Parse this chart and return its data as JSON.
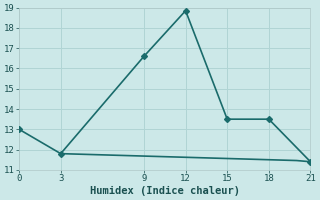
{
  "x_main": [
    0,
    3,
    9,
    12,
    15,
    18,
    21
  ],
  "y_main": [
    13.0,
    11.8,
    16.6,
    18.85,
    13.5,
    13.5,
    11.4
  ],
  "x_flat": [
    3,
    4,
    5,
    6,
    7,
    8,
    9,
    10,
    11,
    12,
    13,
    14,
    15,
    16,
    17,
    18,
    19,
    20,
    21
  ],
  "y_flat": [
    11.8,
    11.78,
    11.76,
    11.74,
    11.72,
    11.7,
    11.68,
    11.66,
    11.64,
    11.62,
    11.6,
    11.58,
    11.56,
    11.54,
    11.52,
    11.5,
    11.48,
    11.46,
    11.4
  ],
  "line_color": "#1a6b6b",
  "bg_color": "#cce8e8",
  "grid_color": "#b0d4d4",
  "spine_color": "#b0c8c8",
  "xlabel": "Humidex (Indice chaleur)",
  "xlim": [
    0,
    21
  ],
  "ylim": [
    11,
    19
  ],
  "xticks": [
    0,
    3,
    9,
    12,
    15,
    18,
    21
  ],
  "yticks": [
    11,
    12,
    13,
    14,
    15,
    16,
    17,
    18,
    19
  ],
  "marker": "D",
  "markersize": 3,
  "linewidth": 1.2,
  "tick_fontsize": 6.5,
  "xlabel_fontsize": 7.5,
  "font_color": "#1a5050"
}
